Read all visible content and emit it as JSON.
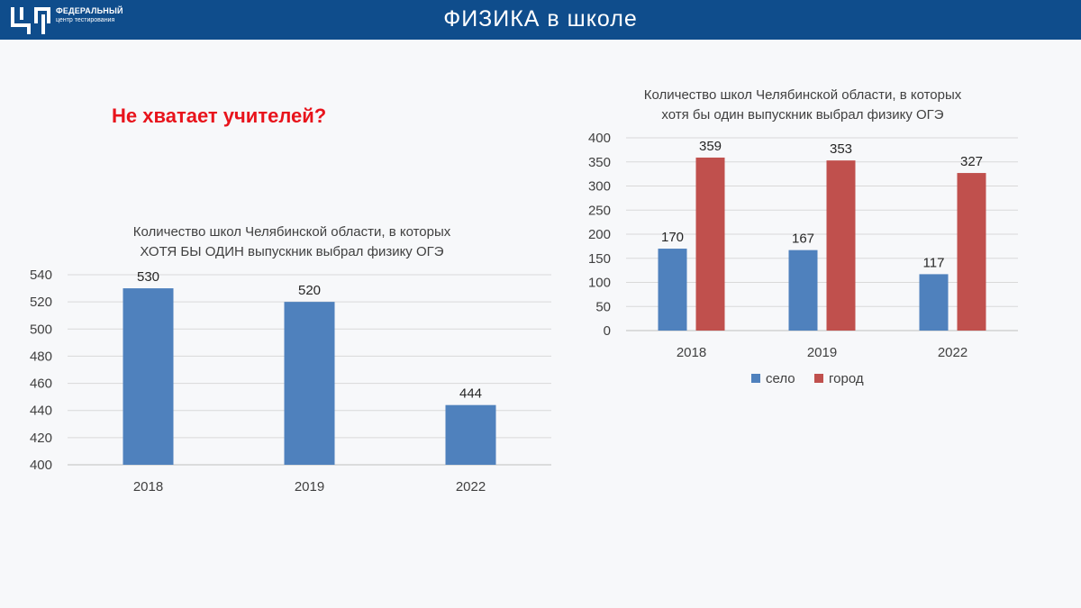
{
  "header": {
    "title": "ФИЗИКА в школе",
    "logo_line1": "ФЕДЕРАЛЬНЫЙ",
    "logo_line2": "центр тестирования"
  },
  "headline": "Не хватает учителей?",
  "colors": {
    "header_bg": "#0f4d8c",
    "headline": "#e8141c",
    "bar_blue": "#4f81bd",
    "bar_red": "#c0504d"
  },
  "chart_data": [
    {
      "type": "bar",
      "title_lines": [
        "Количество школ Челябинской области, в которых",
        "ХОТЯ БЫ ОДИН выпускник выбрал физику ОГЭ"
      ],
      "categories": [
        "2018",
        "2019",
        "2022"
      ],
      "series": [
        {
          "name": "",
          "values": [
            530,
            520,
            444
          ],
          "color": "#4f81bd"
        }
      ],
      "y_ticks": [
        400,
        420,
        440,
        460,
        480,
        500,
        520,
        540
      ],
      "ylim": [
        400,
        540
      ],
      "grid": true,
      "legend": "none"
    },
    {
      "type": "bar",
      "title_lines": [
        "Количество школ Челябинской области, в которых",
        "хотя бы один выпускник выбрал физику ОГЭ"
      ],
      "categories": [
        "2018",
        "2019",
        "2022"
      ],
      "series": [
        {
          "name": "село",
          "values": [
            170,
            167,
            117
          ],
          "color": "#4f81bd"
        },
        {
          "name": "город",
          "values": [
            359,
            353,
            327
          ],
          "color": "#c0504d"
        }
      ],
      "y_ticks": [
        0,
        50,
        100,
        150,
        200,
        250,
        300,
        350,
        400
      ],
      "ylim": [
        0,
        400
      ],
      "grid": true,
      "legend": "bottom-center"
    }
  ]
}
